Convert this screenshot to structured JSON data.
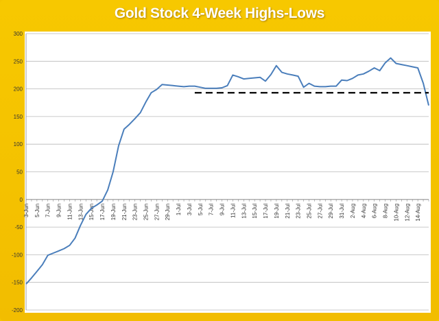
{
  "chart_data": {
    "type": "line",
    "title": "Gold Stock 4-Week Highs-Lows",
    "xlabel": "",
    "ylabel": "",
    "ylim": [
      -200,
      300
    ],
    "yticks": [
      300,
      250,
      200,
      150,
      100,
      50,
      0,
      -50,
      -100,
      -150,
      -200
    ],
    "grid": "horizontal",
    "legend": "none",
    "colors": {
      "series": "#4a7ebb",
      "reference": "#000000",
      "background": "#f5c400",
      "plot": "#ffffff"
    },
    "x_tick_labels": [
      "3-Jun",
      "5-Jun",
      "7-Jun",
      "9-Jun",
      "11-Jun",
      "13-Jun",
      "15-Jun",
      "17-Jun",
      "19-Jun",
      "21-Jun",
      "23-Jun",
      "25-Jun",
      "27-Jun",
      "29-Jun",
      "1-Jul",
      "3-Jul",
      "5-Jul",
      "7-Jul",
      "9-Jul",
      "11-Jul",
      "13-Jul",
      "15-Jul",
      "17-Jul",
      "19-Jul",
      "21-Jul",
      "23-Jul",
      "25-Jul",
      "27-Jul",
      "29-Jul",
      "31-Jul",
      "2-Aug",
      "4-Aug",
      "6-Aug",
      "8-Aug",
      "10-Aug",
      "12-Aug",
      "14-Aug"
    ],
    "series": [
      {
        "values": [
          -153,
          -142,
          -130,
          -118,
          -101,
          -97,
          -93,
          -89,
          -83,
          -70,
          -47,
          -27,
          -16,
          -10,
          -3,
          17,
          50,
          97,
          127,
          136,
          146,
          157,
          176,
          193,
          199,
          208,
          207,
          206,
          205,
          204,
          205,
          205,
          203,
          201,
          201,
          201,
          202,
          206,
          225,
          222,
          218,
          219,
          220,
          221,
          214,
          226,
          242,
          230,
          227,
          225,
          223,
          203,
          210,
          205,
          204,
          204,
          205,
          205,
          216,
          215,
          219,
          225,
          227,
          232,
          238,
          233,
          247,
          256,
          246,
          244,
          242,
          240,
          238,
          210,
          170
        ]
      },
      {
        "style": "dashed",
        "x_start_index": 31,
        "values": [
          193,
          193
        ]
      }
    ]
  }
}
